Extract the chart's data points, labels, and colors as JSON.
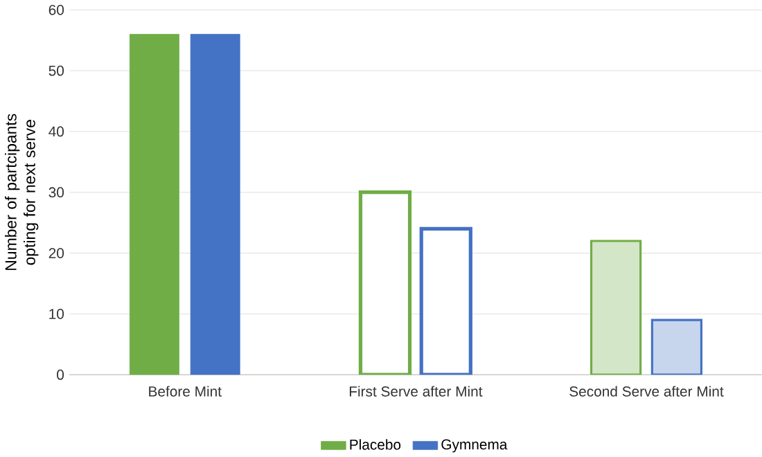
{
  "chart_data": {
    "type": "bar",
    "ylabel": "Number of partcipants opting for next serve",
    "categories": [
      "Before Mint",
      "First Serve after Mint",
      "Second Serve after Mint"
    ],
    "series": [
      {
        "name": "Placebo",
        "color": "#70ad47",
        "values": [
          56,
          30,
          22
        ]
      },
      {
        "name": "Gymnema",
        "color": "#4472c4",
        "values": [
          56,
          24,
          9
        ]
      }
    ],
    "ylim": [
      0,
      60
    ],
    "yticks": [
      0,
      10,
      20,
      30,
      40,
      50,
      60
    ],
    "grid": "y",
    "legend": "bottom"
  }
}
